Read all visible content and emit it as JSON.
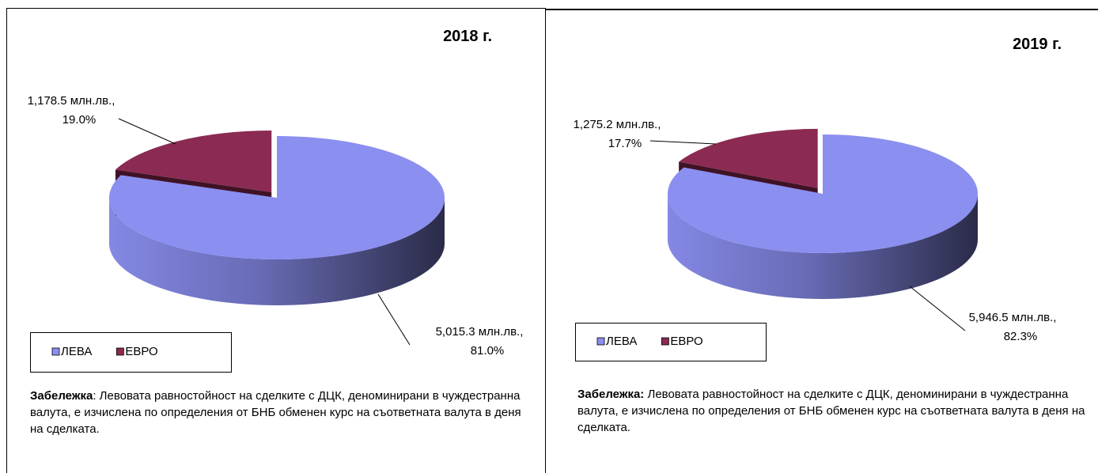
{
  "chart_data": [
    {
      "type": "pie3d",
      "title": "2018 г.",
      "series": [
        {
          "name": "ЛЕВА",
          "color": "#8b8ff0"
        },
        {
          "name": "ЕВРО",
          "color": "#8b2a52"
        }
      ],
      "values": [
        5015.3,
        1178.5
      ],
      "value_labels": [
        "5,015.3 млн.лв.,",
        "1,178.5 млн.лв.,"
      ],
      "percent_labels": [
        "81.0%",
        "19.0%"
      ],
      "note_label": "Забележка",
      "note_text": ": Левовата равностойност на сделките с ДЦК, деноминирани в чуждестранна валута, е изчислена по определения от БНБ обменен курс на съответната валута в деня на сделката."
    },
    {
      "type": "pie3d",
      "title": "2019 г.",
      "series": [
        {
          "name": "ЛЕВА",
          "color": "#8b8ff0"
        },
        {
          "name": "ЕВРО",
          "color": "#8b2a52"
        }
      ],
      "values": [
        5946.5,
        1275.2
      ],
      "value_labels": [
        "5,946.5 млн.лв.,",
        "1,275.2 млн.лв.,"
      ],
      "percent_labels": [
        "82.3%",
        "17.7%"
      ],
      "note_label": "Забележка:",
      "note_text": " Левовата равностойност на сделките с ДЦК, деноминирани в чуждестранна валута, е изчислена по определения от БНБ обменен курс на съответната валута в деня на сделката."
    }
  ]
}
